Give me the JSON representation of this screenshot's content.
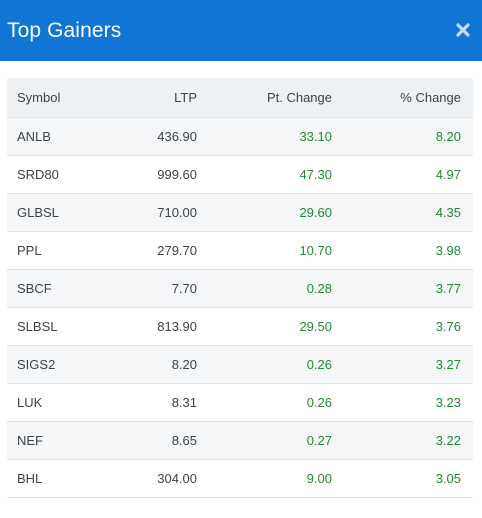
{
  "header": {
    "title": "Top Gainers",
    "close_icon": "close-icon"
  },
  "colors": {
    "header_bg": "#0f76d6",
    "gain_text": "#228a36"
  },
  "table": {
    "columns": [
      "Symbol",
      "LTP",
      "Pt. Change",
      "% Change"
    ],
    "rows": [
      [
        "ANLB",
        "436.90",
        "33.10",
        "8.20"
      ],
      [
        "SRD80",
        "999.60",
        "47.30",
        "4.97"
      ],
      [
        "GLBSL",
        "710.00",
        "29.60",
        "4.35"
      ],
      [
        "PPL",
        "279.70",
        "10.70",
        "3.98"
      ],
      [
        "SBCF",
        "7.70",
        "0.28",
        "3.77"
      ],
      [
        "SLBSL",
        "813.90",
        "29.50",
        "3.76"
      ],
      [
        "SIGS2",
        "8.20",
        "0.26",
        "3.27"
      ],
      [
        "LUK",
        "8.31",
        "0.26",
        "3.23"
      ],
      [
        "NEF",
        "8.65",
        "0.27",
        "3.22"
      ],
      [
        "BHL",
        "304.00",
        "9.00",
        "3.05"
      ]
    ]
  }
}
